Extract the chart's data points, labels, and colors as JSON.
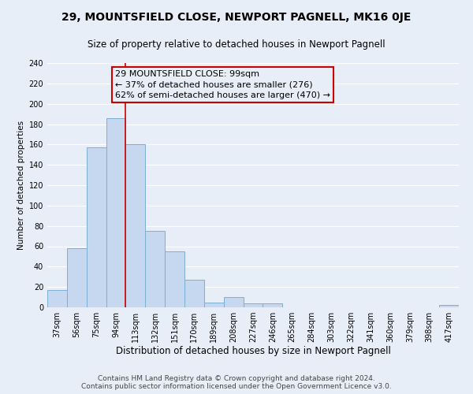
{
  "title": "29, MOUNTSFIELD CLOSE, NEWPORT PAGNELL, MK16 0JE",
  "subtitle": "Size of property relative to detached houses in Newport Pagnell",
  "xlabel": "Distribution of detached houses by size in Newport Pagnell",
  "ylabel": "Number of detached properties",
  "bar_color": "#c5d8ef",
  "bar_edge_color": "#7bafd4",
  "bin_labels": [
    "37sqm",
    "56sqm",
    "75sqm",
    "94sqm",
    "113sqm",
    "132sqm",
    "151sqm",
    "170sqm",
    "189sqm",
    "208sqm",
    "227sqm",
    "246sqm",
    "265sqm",
    "284sqm",
    "303sqm",
    "322sqm",
    "341sqm",
    "360sqm",
    "379sqm",
    "398sqm",
    "417sqm"
  ],
  "bar_values": [
    17,
    58,
    157,
    186,
    160,
    75,
    55,
    27,
    5,
    10,
    4,
    4,
    0,
    0,
    0,
    0,
    0,
    0,
    0,
    0,
    2
  ],
  "ylim": [
    0,
    240
  ],
  "yticks": [
    0,
    20,
    40,
    60,
    80,
    100,
    120,
    140,
    160,
    180,
    200,
    220,
    240
  ],
  "vline_color": "#cc0000",
  "vline_position": 3.5,
  "annotation_line1": "29 MOUNTSFIELD CLOSE: 99sqm",
  "annotation_line2": "← 37% of detached houses are smaller (276)",
  "annotation_line3": "62% of semi-detached houses are larger (470) →",
  "box_edge_color": "#cc0000",
  "footer_line1": "Contains HM Land Registry data © Crown copyright and database right 2024.",
  "footer_line2": "Contains public sector information licensed under the Open Government Licence v3.0.",
  "background_color": "#e8eef8",
  "grid_color": "#ffffff",
  "title_fontsize": 10,
  "subtitle_fontsize": 8.5,
  "xlabel_fontsize": 8.5,
  "ylabel_fontsize": 7.5,
  "tick_fontsize": 7,
  "annotation_fontsize": 8,
  "footer_fontsize": 6.5
}
